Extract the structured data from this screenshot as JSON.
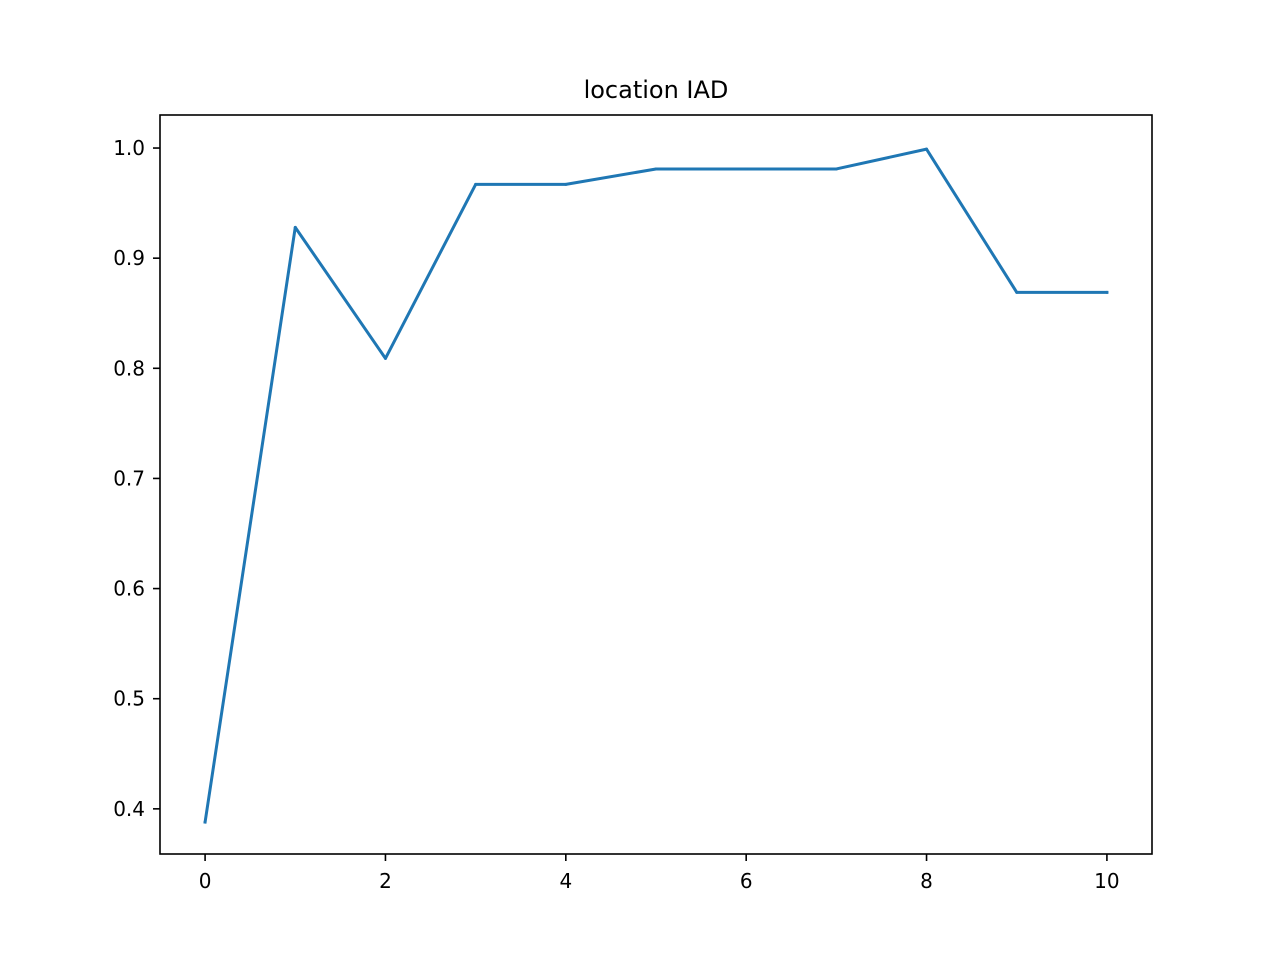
{
  "chart_data": {
    "type": "line",
    "title": "location IAD",
    "xlabel": "",
    "ylabel": "",
    "xlim": [
      -0.5,
      10.5
    ],
    "ylim": [
      0.359,
      1.03
    ],
    "grid": false,
    "x_ticks": [
      0,
      2,
      4,
      6,
      8,
      10
    ],
    "x_tick_labels": [
      "0",
      "2",
      "4",
      "6",
      "8",
      "10"
    ],
    "y_ticks": [
      0.4,
      0.5,
      0.6,
      0.7,
      0.8,
      0.9,
      1.0
    ],
    "y_tick_labels": [
      "0.4",
      "0.5",
      "0.6",
      "0.7",
      "0.8",
      "0.9",
      "1.0"
    ],
    "x": [
      0,
      1,
      2,
      3,
      4,
      5,
      6,
      7,
      8,
      9,
      10
    ],
    "series": [
      {
        "color": "#1f77b4",
        "values": [
          0.388,
          0.928,
          0.809,
          0.967,
          0.967,
          0.981,
          0.981,
          0.981,
          0.999,
          0.869,
          0.869
        ]
      }
    ]
  }
}
